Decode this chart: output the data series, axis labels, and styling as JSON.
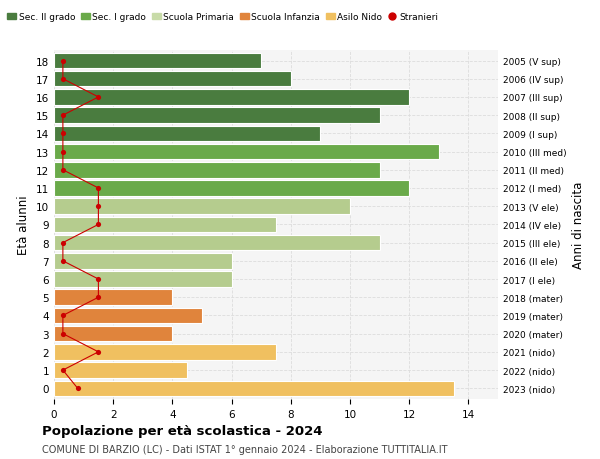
{
  "ages": [
    18,
    17,
    16,
    15,
    14,
    13,
    12,
    11,
    10,
    9,
    8,
    7,
    6,
    5,
    4,
    3,
    2,
    1,
    0
  ],
  "years": [
    "2005 (V sup)",
    "2006 (IV sup)",
    "2007 (III sup)",
    "2008 (II sup)",
    "2009 (I sup)",
    "2010 (III med)",
    "2011 (II med)",
    "2012 (I med)",
    "2013 (V ele)",
    "2014 (IV ele)",
    "2015 (III ele)",
    "2016 (II ele)",
    "2017 (I ele)",
    "2018 (mater)",
    "2019 (mater)",
    "2020 (mater)",
    "2021 (nido)",
    "2022 (nido)",
    "2023 (nido)"
  ],
  "bar_values": [
    7,
    8,
    12,
    11,
    9,
    13,
    11,
    12,
    10,
    7.5,
    11,
    6,
    6,
    4,
    5,
    4,
    7.5,
    4.5,
    13.5
  ],
  "bar_colors": [
    "#4a7c3f",
    "#4a7c3f",
    "#4a7c3f",
    "#4a7c3f",
    "#4a7c3f",
    "#6aaa4a",
    "#6aaa4a",
    "#6aaa4a",
    "#b5cc8e",
    "#b5cc8e",
    "#b5cc8e",
    "#b5cc8e",
    "#b5cc8e",
    "#e0843c",
    "#e0843c",
    "#e0843c",
    "#f0c060",
    "#f0c060",
    "#f0c060"
  ],
  "stranieri_values": [
    0.3,
    0.3,
    1.5,
    0.3,
    0.3,
    0.3,
    0.3,
    1.5,
    1.5,
    1.5,
    0.3,
    0.3,
    1.5,
    1.5,
    0.3,
    0.3,
    1.5,
    0.3,
    0.8
  ],
  "stranieri_color": "#cc0000",
  "legend_labels": [
    "Sec. II grado",
    "Sec. I grado",
    "Scuola Primaria",
    "Scuola Infanzia",
    "Asilo Nido",
    "Stranieri"
  ],
  "legend_colors": [
    "#4a7c3f",
    "#6aaa4a",
    "#c8dba8",
    "#e0843c",
    "#f0c060",
    "#cc0000"
  ],
  "ylabel_left": "Età alunni",
  "ylabel_right": "Anni di nascita",
  "title": "Popolazione per età scolastica - 2024",
  "subtitle": "COMUNE DI BARZIO (LC) - Dati ISTAT 1° gennaio 2024 - Elaborazione TUTTITALIA.IT",
  "xlim": [
    0,
    15
  ],
  "xticks": [
    0,
    2,
    4,
    6,
    8,
    10,
    12,
    14
  ],
  "bg_color": "#f5f5f5",
  "grid_color": "#dddddd"
}
